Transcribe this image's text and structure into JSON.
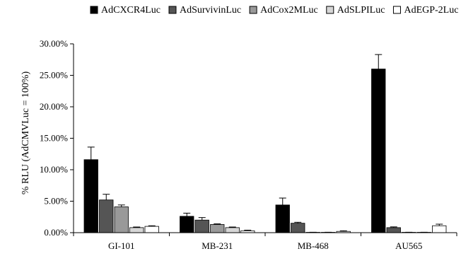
{
  "chart_data": {
    "type": "bar",
    "title": "",
    "xlabel": "",
    "ylabel": "% RLU (AdCMVLuc = 100%)",
    "ylim": [
      0,
      30
    ],
    "y_ticks": [
      "0.00%",
      "5.00%",
      "10.00%",
      "15.00%",
      "20.00%",
      "25.00%",
      "30.00%"
    ],
    "y_tick_values": [
      0,
      5,
      10,
      15,
      20,
      25,
      30
    ],
    "grid": false,
    "legend_position": "top",
    "categories": [
      "GI-101",
      "MB-231",
      "MB-468",
      "AU565"
    ],
    "series": [
      {
        "name": "AdCXCR4Luc",
        "color": "#000000",
        "values": [
          11.6,
          2.6,
          4.4,
          26.0
        ],
        "errors": [
          2.0,
          0.5,
          1.1,
          2.3
        ]
      },
      {
        "name": "AdSurvivinLuc",
        "color": "#555555",
        "values": [
          5.2,
          2.0,
          1.5,
          0.8
        ],
        "errors": [
          0.9,
          0.4,
          0.15,
          0.12
        ]
      },
      {
        "name": "AdCox2MLuc",
        "color": "#999999",
        "values": [
          4.1,
          1.3,
          0.05,
          0.05
        ],
        "errors": [
          0.3,
          0.1,
          0.02,
          0.02
        ]
      },
      {
        "name": "AdSLPILuc",
        "color": "#d6d6d6",
        "values": [
          0.8,
          0.8,
          0.05,
          0.05
        ],
        "errors": [
          0.1,
          0.1,
          0.02,
          0.02
        ]
      },
      {
        "name": "AdEGP-2Luc",
        "color": "#ffffff",
        "values": [
          1.0,
          0.3,
          0.2,
          1.1
        ],
        "errors": [
          0.1,
          0.1,
          0.1,
          0.25
        ]
      }
    ]
  }
}
